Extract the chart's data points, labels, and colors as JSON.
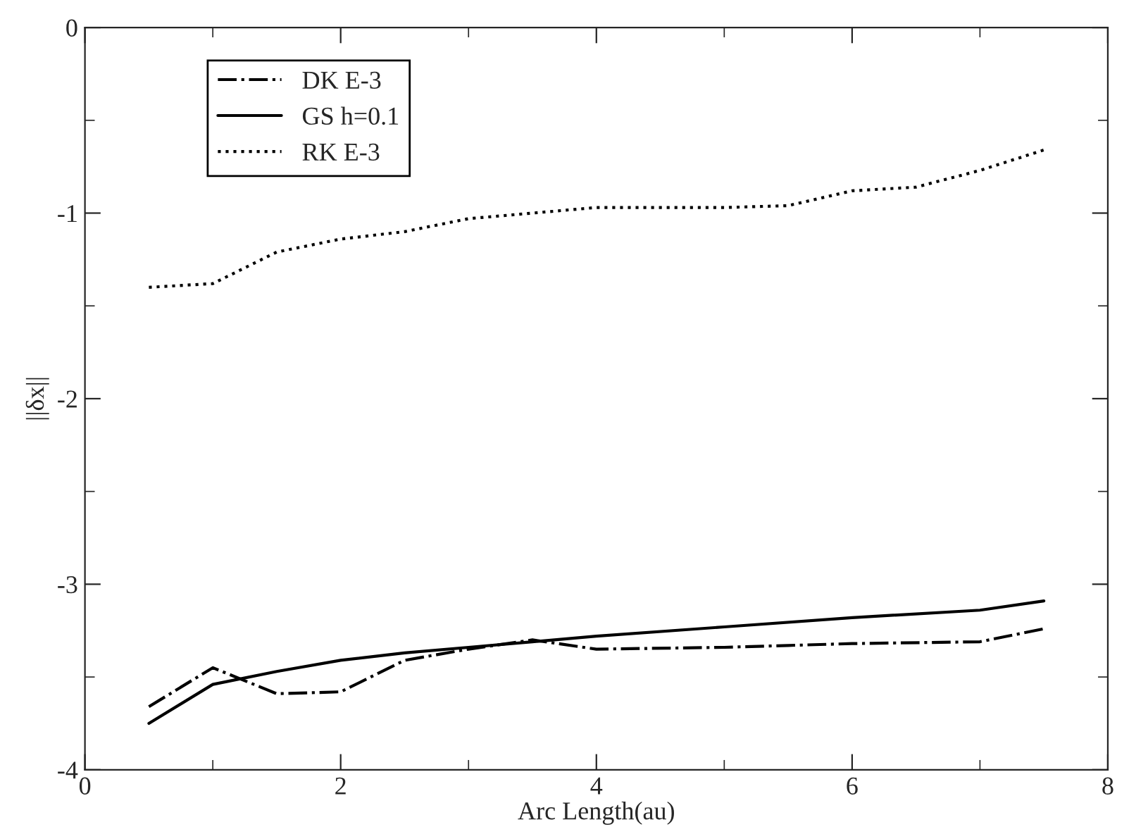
{
  "chart_data": {
    "type": "line",
    "xlabel": "Arc Length(au)",
    "ylabel": "||δx||",
    "xlim": [
      0,
      8
    ],
    "xticks": [
      0,
      2,
      4,
      6,
      8
    ],
    "ylim": [
      -4,
      0
    ],
    "yticks": [
      -4,
      -3,
      -2,
      -1,
      0
    ],
    "legend": "top left",
    "grid": false,
    "series": [
      {
        "name": "DK E-3",
        "color": "#000000",
        "line_style": "dashdot",
        "x": [
          0.5,
          1,
          1.5,
          2,
          2.5,
          3,
          3.5,
          4,
          5,
          5.5,
          6,
          7,
          7.5
        ],
        "values": [
          -3.66,
          -3.45,
          -3.59,
          -3.58,
          -3.41,
          -3.35,
          -3.3,
          -3.35,
          -3.34,
          -3.33,
          -3.32,
          -3.31,
          -3.24
        ]
      },
      {
        "name": "GS h=0.1",
        "color": "#000000",
        "line_style": "solid",
        "x": [
          0.5,
          1,
          1.5,
          2,
          2.5,
          3,
          3.5,
          4,
          5,
          6,
          7,
          7.5
        ],
        "values": [
          -3.75,
          -3.54,
          -3.47,
          -3.41,
          -3.37,
          -3.34,
          -3.31,
          -3.28,
          -3.23,
          -3.18,
          -3.14,
          -3.09
        ]
      },
      {
        "name": "RK E-3",
        "color": "#000000",
        "line_style": "dotted",
        "x": [
          0.5,
          1,
          1.5,
          2,
          2.5,
          3,
          3.5,
          4,
          5,
          5.5,
          6,
          6.5,
          7,
          7.5
        ],
        "values": [
          -1.4,
          -1.38,
          -1.21,
          -1.14,
          -1.1,
          -1.03,
          -1.0,
          -0.97,
          -0.97,
          -0.96,
          -0.88,
          -0.86,
          -0.77,
          -0.66
        ]
      }
    ]
  }
}
